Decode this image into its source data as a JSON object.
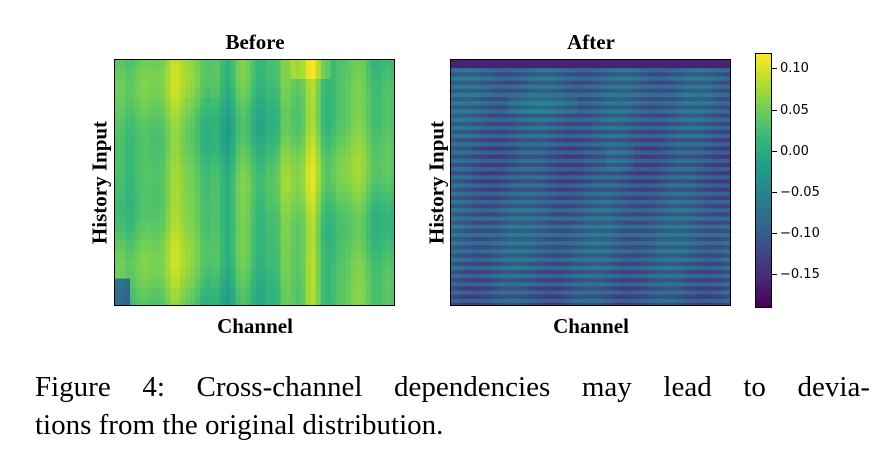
{
  "chart_data": {
    "type": "heatmap",
    "caption": {
      "line1": "Figure 4: Cross-channel dependencies may lead to devia-",
      "line2": "tions from the original distribution."
    },
    "panels": [
      {
        "name": "before",
        "title": "Before",
        "xlabel": "Channel",
        "ylabel": "History Input",
        "description_values": "smooth vertical bands, mostly 0.00 to 0.09, bright columns near 0.10"
      },
      {
        "name": "after",
        "title": "After",
        "xlabel": "Channel",
        "ylabel": "History Input",
        "description_values": "horizontal striped rows, mostly -0.16 to -0.05"
      }
    ],
    "colorbar": {
      "vmin": -0.19,
      "vmax": 0.12,
      "ticks": [
        0.1,
        0.05,
        0.0,
        -0.05,
        -0.1,
        -0.15
      ],
      "tick_labels": [
        "0.10",
        "0.05",
        "0.00",
        "−0.05",
        "−0.10",
        "−0.15"
      ],
      "colormap": "viridis"
    }
  }
}
